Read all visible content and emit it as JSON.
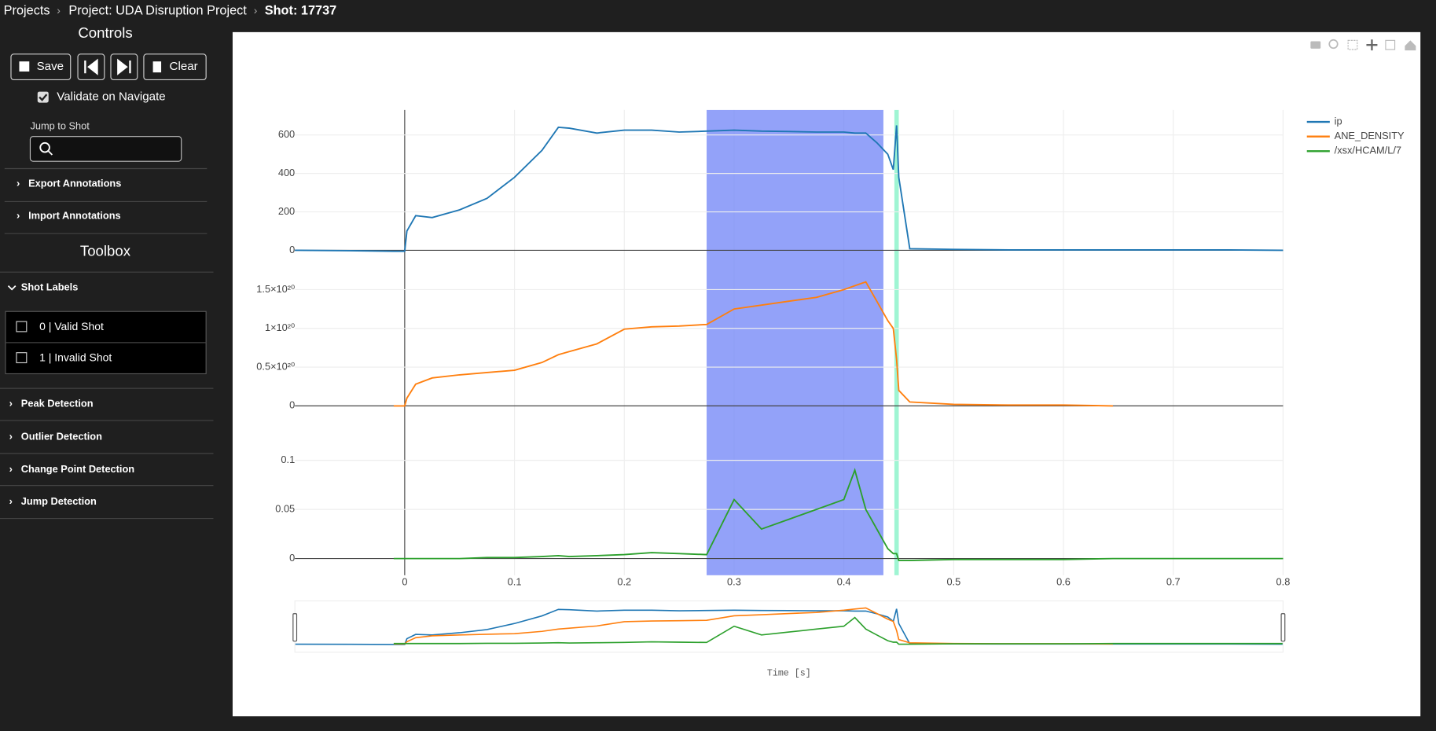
{
  "breadcrumbs": [
    "Projects",
    "Project: UDA Disruption Project",
    "Shot: 17737"
  ],
  "sidebar": {
    "controls_title": "Controls",
    "buttons": [
      "Save",
      "Clear"
    ],
    "validate": "Validate on Navigate",
    "jump_label": "Jump to Shot",
    "sections": [
      "Export Annotations",
      "Import Annotations"
    ],
    "toolbox_title": "Toolbox",
    "shot_labels_title": "Shot Labels",
    "shot_labels": [
      "0 | Valid Shot",
      "1 | Invalid Shot"
    ],
    "tools": [
      "Peak Detection",
      "Outlier Detection",
      "Change Point Detection",
      "Jump Detection"
    ]
  },
  "chart_data": {
    "type": "line",
    "xlabel": "Time [s]",
    "x": [
      -0.1,
      -0.05,
      -0.01,
      0,
      0.002,
      0.01,
      0.025,
      0.05,
      0.075,
      0.1,
      0.125,
      0.14,
      0.15,
      0.175,
      0.2,
      0.225,
      0.25,
      0.275,
      0.3,
      0.325,
      0.35,
      0.375,
      0.4,
      0.41,
      0.42,
      0.43,
      0.44,
      0.445,
      0.448,
      0.45,
      0.46,
      0.5,
      0.55,
      0.6,
      0.645,
      0.7,
      0.75,
      0.8
    ],
    "xlim": [
      -0.1,
      0.8
    ],
    "xticks": [
      0,
      0.1,
      0.2,
      0.3,
      0.4,
      0.5,
      0.6,
      0.7,
      0.8
    ],
    "series": [
      {
        "name": "ip",
        "color": "#1f77b4",
        "axis": "y",
        "values": [
          0,
          -2,
          -5,
          -5,
          100,
          180,
          170,
          210,
          270,
          380,
          520,
          640,
          635,
          610,
          625,
          625,
          615,
          620,
          625,
          620,
          618,
          615,
          615,
          610,
          610,
          560,
          500,
          420,
          650,
          380,
          8,
          5,
          2,
          2,
          2,
          2,
          2,
          0
        ]
      },
      {
        "name": "ANE_DENSITY",
        "color": "#ff7f0e",
        "axis": "y2",
        "values": [
          null,
          null,
          0,
          0,
          1e+19,
          2.8e+19,
          3.6e+19,
          4e+19,
          4.3e+19,
          4.6e+19,
          5.6e+19,
          6.6e+19,
          7e+19,
          8e+19,
          9.9e+19,
          1.02e+20,
          1.03e+20,
          1.05e+20,
          1.25e+20,
          1.3e+20,
          1.35e+20,
          1.4e+20,
          1.5e+20,
          1.55e+20,
          1.6e+20,
          1.35e+20,
          1.1e+20,
          1e+20,
          6e+19,
          2e+19,
          5e+18,
          2e+18,
          1e+18,
          1e+18,
          0,
          null,
          null,
          null
        ]
      },
      {
        "name": "/xsx/HCAM/L/7",
        "color": "#2ca02c",
        "axis": "y3",
        "values": [
          null,
          null,
          0,
          0,
          0,
          0,
          0,
          0,
          0.001,
          0.001,
          0.002,
          0.003,
          0.002,
          0.003,
          0.004,
          0.006,
          0.005,
          0.004,
          0.06,
          0.03,
          0.04,
          0.05,
          0.06,
          0.09,
          0.05,
          0.03,
          0.01,
          0.005,
          0.005,
          -0.002,
          -0.002,
          -0.001,
          -0.001,
          -0.001,
          0,
          0,
          0,
          0
        ]
      }
    ],
    "ylim": [
      -80,
      730
    ],
    "yticks": [
      0,
      200,
      400,
      600
    ],
    "y2lim": [
      -2e+19,
      1.75e+20
    ],
    "y2ticks": [
      0,
      {
        "value": 5e+19,
        "label": "0.5×10²⁰"
      },
      {
        "value": 1e+20,
        "label": "1×10²⁰"
      },
      {
        "value": 1.5e+20,
        "label": "1.5×10²⁰"
      }
    ],
    "y3lim": [
      -0.017,
      0.135
    ],
    "y3ticks": [
      0,
      0.05,
      0.1
    ],
    "regions": [
      {
        "x0": 0.275,
        "x1": 0.436,
        "color": "#6f83f7"
      },
      {
        "x0": 0.446,
        "x1": 0.45,
        "color": "#7ff2c4"
      }
    ]
  }
}
